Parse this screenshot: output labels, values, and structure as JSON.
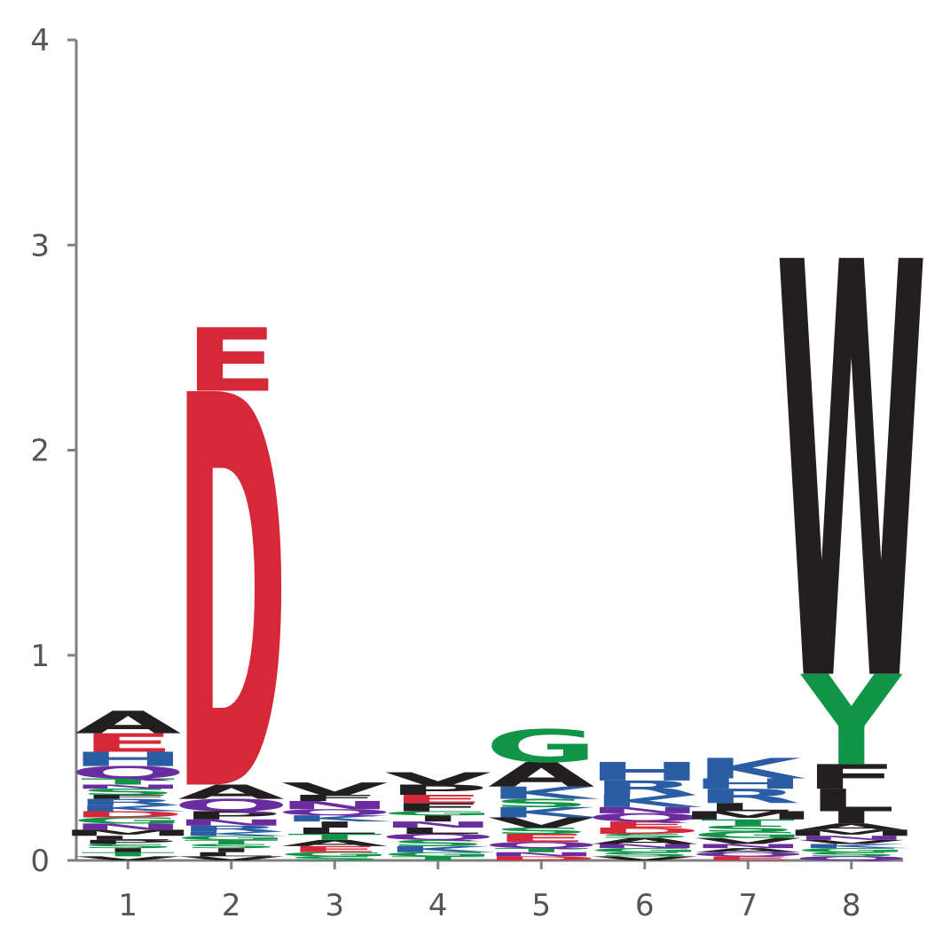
{
  "chart_data": {
    "type": "sequence-logo",
    "title": "",
    "xlabel": "",
    "ylabel": "",
    "ylim": [
      0,
      4
    ],
    "y_ticks": [
      "0",
      "1",
      "2",
      "3",
      "4"
    ],
    "x_ticks": [
      "1",
      "2",
      "3",
      "4",
      "5",
      "6",
      "7",
      "8"
    ],
    "grid": false,
    "colors": {
      "A": "#231f20",
      "V": "#231f20",
      "L": "#231f20",
      "I": "#231f20",
      "M": "#231f20",
      "F": "#231f20",
      "W": "#231f20",
      "P": "#231f20",
      "D": "#d62839",
      "E": "#d62839",
      "K": "#2a5da4",
      "R": "#2a5da4",
      "H": "#2a5da4",
      "Q": "#6a2d9f",
      "N": "#6a2d9f",
      "G": "#109447",
      "S": "#109447",
      "T": "#109447",
      "Y": "#109447",
      "C": "#109447"
    },
    "positions": [
      {
        "pos": "1",
        "stack": [
          {
            "l": "V",
            "h": 0.02
          },
          {
            "l": "T",
            "h": 0.02
          },
          {
            "l": "I",
            "h": 0.02
          },
          {
            "l": "S",
            "h": 0.02
          },
          {
            "l": "P",
            "h": 0.02
          },
          {
            "l": "L",
            "h": 0.02
          },
          {
            "l": "M",
            "h": 0.03
          },
          {
            "l": "N",
            "h": 0.03
          },
          {
            "l": "G",
            "h": 0.03
          },
          {
            "l": "D",
            "h": 0.03
          },
          {
            "l": "K",
            "h": 0.03
          },
          {
            "l": "R",
            "h": 0.03
          },
          {
            "l": "F",
            "h": 0.02
          },
          {
            "l": "S",
            "h": 0.03
          },
          {
            "l": "N",
            "h": 0.02
          },
          {
            "l": "T",
            "h": 0.03
          },
          {
            "l": "Q",
            "h": 0.06
          },
          {
            "l": "H",
            "h": 0.07
          },
          {
            "l": "E",
            "h": 0.09
          },
          {
            "l": "A",
            "h": 0.11
          }
        ]
      },
      {
        "pos": "2",
        "stack": [
          {
            "l": "V",
            "h": 0.02
          },
          {
            "l": "L",
            "h": 0.02
          },
          {
            "l": "I",
            "h": 0.02
          },
          {
            "l": "S",
            "h": 0.02
          },
          {
            "l": "T",
            "h": 0.02
          },
          {
            "l": "G",
            "h": 0.02
          },
          {
            "l": "K",
            "h": 0.02
          },
          {
            "l": "R",
            "h": 0.03
          },
          {
            "l": "N",
            "h": 0.03
          },
          {
            "l": "P",
            "h": 0.04
          },
          {
            "l": "Q",
            "h": 0.06
          },
          {
            "l": "A",
            "h": 0.07
          },
          {
            "l": "D",
            "h": 1.92
          },
          {
            "l": "E",
            "h": 0.31
          }
        ]
      },
      {
        "pos": "3",
        "stack": [
          {
            "l": "S",
            "h": 0.02
          },
          {
            "l": "G",
            "h": 0.02
          },
          {
            "l": "E",
            "h": 0.03
          },
          {
            "l": "A",
            "h": 0.03
          },
          {
            "l": "T",
            "h": 0.03
          },
          {
            "l": "L",
            "h": 0.03
          },
          {
            "l": "I",
            "h": 0.03
          },
          {
            "l": "K",
            "h": 0.03
          },
          {
            "l": "Q",
            "h": 0.03
          },
          {
            "l": "N",
            "h": 0.04
          },
          {
            "l": "F",
            "h": 0.03
          },
          {
            "l": "V",
            "h": 0.06
          }
        ]
      },
      {
        "pos": "4",
        "stack": [
          {
            "l": "T",
            "h": 0.02
          },
          {
            "l": "G",
            "h": 0.02
          },
          {
            "l": "K",
            "h": 0.03
          },
          {
            "l": "S",
            "h": 0.03
          },
          {
            "l": "Q",
            "h": 0.03
          },
          {
            "l": "L",
            "h": 0.03
          },
          {
            "l": "N",
            "h": 0.03
          },
          {
            "l": "I",
            "h": 0.03
          },
          {
            "l": "G",
            "h": 0.02
          },
          {
            "l": "F",
            "h": 0.04
          },
          {
            "l": "E",
            "h": 0.04
          },
          {
            "l": "P",
            "h": 0.05
          },
          {
            "l": "V",
            "h": 0.06
          }
        ]
      },
      {
        "pos": "5",
        "stack": [
          {
            "l": "D",
            "h": 0.02
          },
          {
            "l": "N",
            "h": 0.02
          },
          {
            "l": "T",
            "h": 0.02
          },
          {
            "l": "Q",
            "h": 0.03
          },
          {
            "l": "E",
            "h": 0.04
          },
          {
            "l": "S",
            "h": 0.03
          },
          {
            "l": "V",
            "h": 0.05
          },
          {
            "l": "K",
            "h": 0.05
          },
          {
            "l": "S",
            "h": 0.04
          },
          {
            "l": "K",
            "h": 0.06
          },
          {
            "l": "A",
            "h": 0.12
          },
          {
            "l": "G",
            "h": 0.16
          }
        ]
      },
      {
        "pos": "6",
        "stack": [
          {
            "l": "V",
            "h": 0.02
          },
          {
            "l": "S",
            "h": 0.02
          },
          {
            "l": "G",
            "h": 0.02
          },
          {
            "l": "N",
            "h": 0.02
          },
          {
            "l": "A",
            "h": 0.03
          },
          {
            "l": "S",
            "h": 0.02
          },
          {
            "l": "D",
            "h": 0.03
          },
          {
            "l": "E",
            "h": 0.03
          },
          {
            "l": "Q",
            "h": 0.04
          },
          {
            "l": "N",
            "h": 0.03
          },
          {
            "l": "K",
            "h": 0.06
          },
          {
            "l": "R",
            "h": 0.07
          },
          {
            "l": "H",
            "h": 0.09
          }
        ]
      },
      {
        "pos": "7",
        "stack": [
          {
            "l": "E",
            "h": 0.02
          },
          {
            "l": "Q",
            "h": 0.02
          },
          {
            "l": "A",
            "h": 0.02
          },
          {
            "l": "N",
            "h": 0.02
          },
          {
            "l": "V",
            "h": 0.03
          },
          {
            "l": "G",
            "h": 0.03
          },
          {
            "l": "S",
            "h": 0.03
          },
          {
            "l": "T",
            "h": 0.03
          },
          {
            "l": "M",
            "h": 0.04
          },
          {
            "l": "L",
            "h": 0.04
          },
          {
            "l": "R",
            "h": 0.07
          },
          {
            "l": "H",
            "h": 0.05
          },
          {
            "l": "K",
            "h": 0.1
          }
        ]
      },
      {
        "pos": "8",
        "stack": [
          {
            "l": "Q",
            "h": 0.02
          },
          {
            "l": "S",
            "h": 0.02
          },
          {
            "l": "G",
            "h": 0.02
          },
          {
            "l": "K",
            "h": 0.02
          },
          {
            "l": "V",
            "h": 0.02
          },
          {
            "l": "N",
            "h": 0.02
          },
          {
            "l": "M",
            "h": 0.03
          },
          {
            "l": "A",
            "h": 0.03
          },
          {
            "l": "I",
            "h": 0.06
          },
          {
            "l": "L",
            "h": 0.11
          },
          {
            "l": "F",
            "h": 0.12
          },
          {
            "l": "Y",
            "h": 0.44
          },
          {
            "l": "W",
            "h": 2.03
          }
        ]
      }
    ]
  }
}
